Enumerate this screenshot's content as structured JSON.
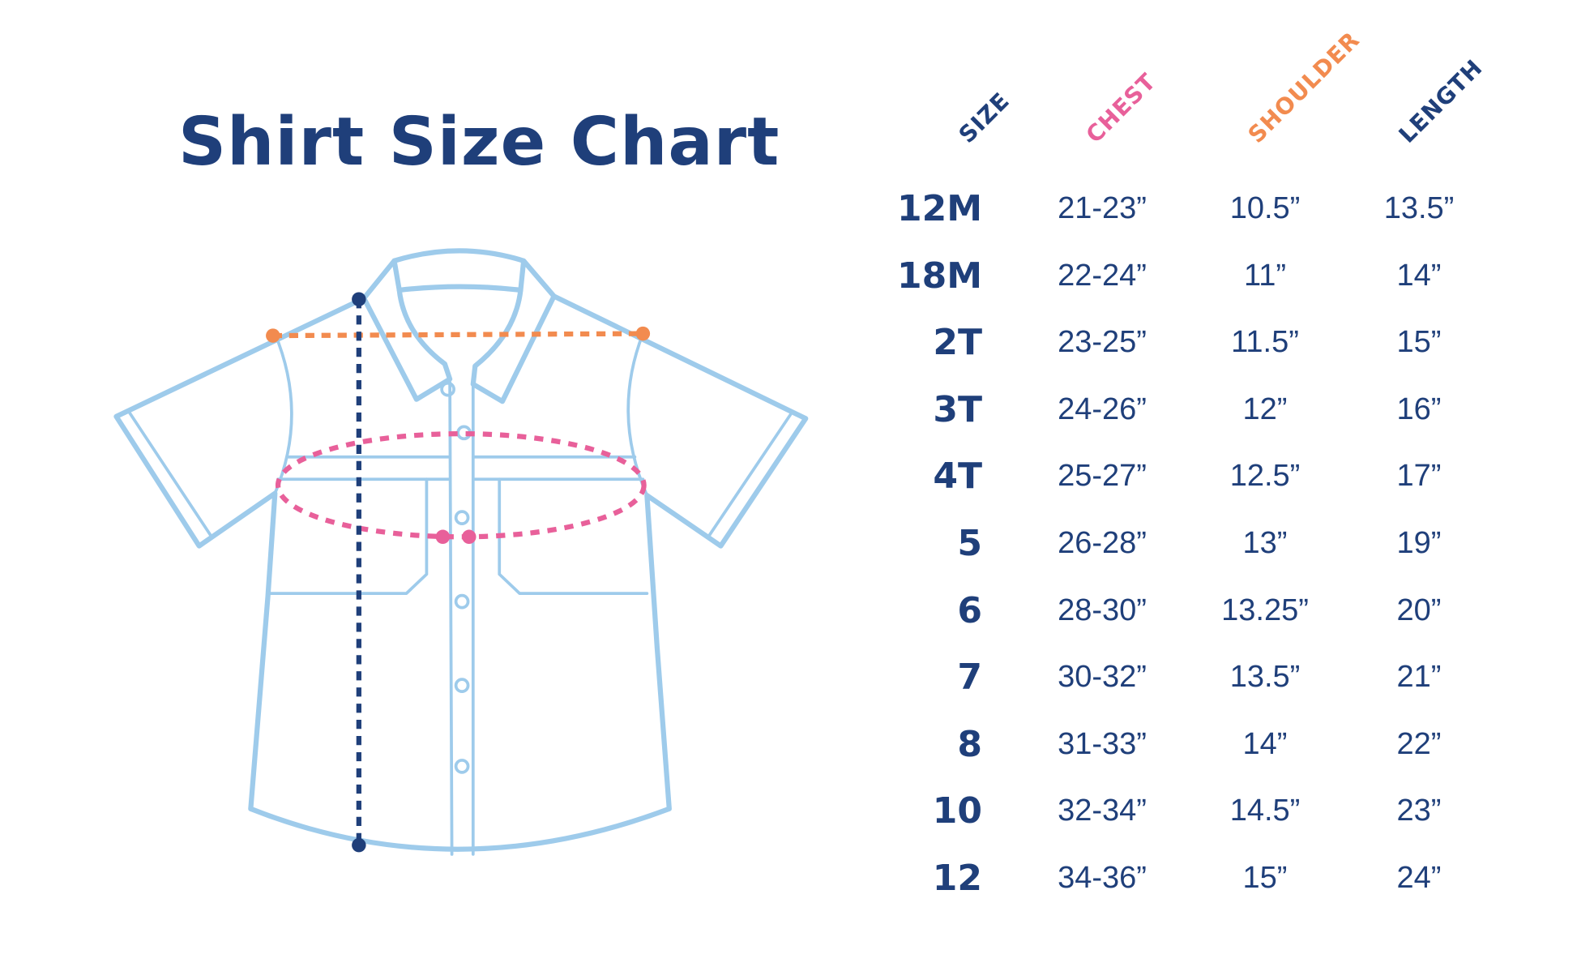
{
  "title": "Shirt Size Chart",
  "colors": {
    "navy": "#1f3f7a",
    "chest": "#e8609a",
    "shoulder": "#f28b4f",
    "shirt_outline": "#9ecbeb"
  },
  "chart_data": {
    "type": "table",
    "title": "Shirt Size Chart",
    "columns": [
      "SIZE",
      "CHEST",
      "SHOULDER",
      "LENGTH"
    ],
    "rows": [
      [
        "12M",
        "21-23”",
        "10.5”",
        "13.5”"
      ],
      [
        "18M",
        "22-24”",
        "11”",
        "14”"
      ],
      [
        "2T",
        "23-25”",
        "11.5”",
        "15”"
      ],
      [
        "3T",
        "24-26”",
        "12”",
        "16”"
      ],
      [
        "4T",
        "25-27”",
        "12.5”",
        "17”"
      ],
      [
        "5",
        "26-28”",
        "13”",
        "19”"
      ],
      [
        "6",
        "28-30”",
        "13.25”",
        "20”"
      ],
      [
        "7",
        "30-32”",
        "13.5”",
        "21”"
      ],
      [
        "8",
        "31-33”",
        "14”",
        "22”"
      ],
      [
        "10",
        "32-34”",
        "14.5”",
        "23”"
      ],
      [
        "12",
        "34-36”",
        "15”",
        "24”"
      ]
    ]
  }
}
